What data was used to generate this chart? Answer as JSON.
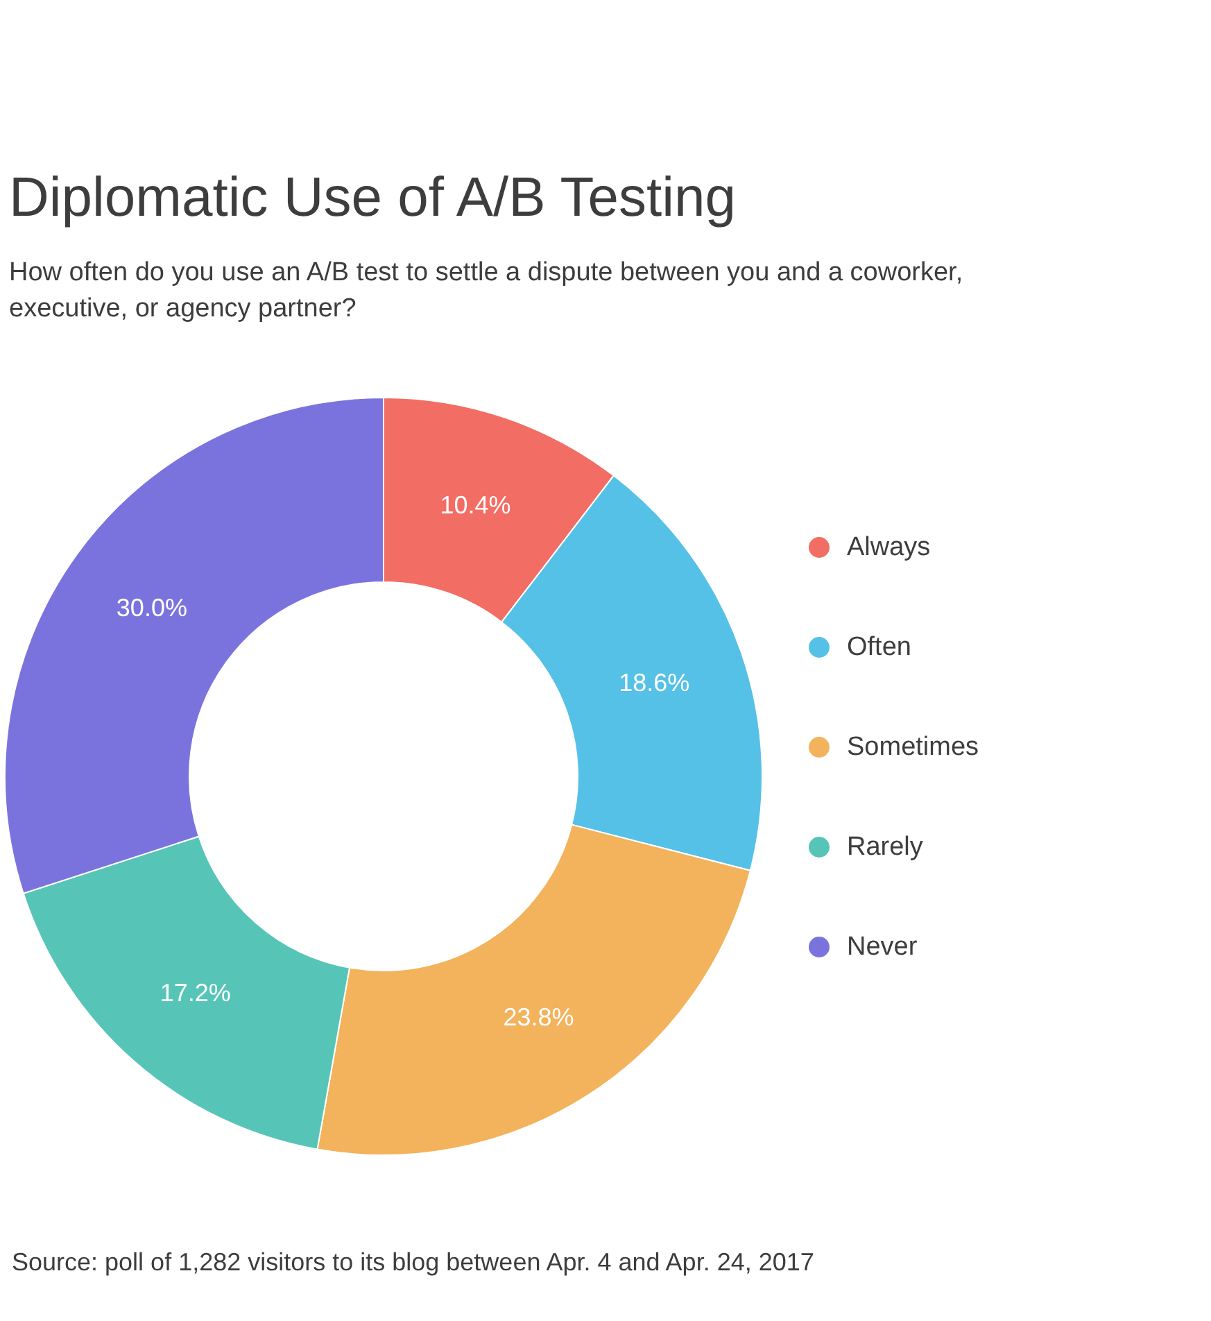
{
  "chart_data": {
    "type": "donut",
    "title": "Diplomatic Use of A/B Testing",
    "subtitle": "How often do you use an A/B test to settle a dispute between you and a coworker, executive, or agency partner?",
    "categories": [
      "Always",
      "Often",
      "Sometimes",
      "Rarely",
      "Never"
    ],
    "values": [
      10.4,
      18.6,
      23.8,
      17.2,
      30.0
    ],
    "value_labels": [
      "10.4%",
      "18.6%",
      "23.8%",
      "17.2%",
      "30.0%"
    ],
    "colors": [
      "#f26d64",
      "#55c1e6",
      "#f3b25c",
      "#56c5b8",
      "#7b73dd"
    ],
    "legend": "right",
    "annotations": [
      "Source: poll of 1,282 visitors to its blog between Apr. 4 and Apr. 24, 2017"
    ]
  }
}
